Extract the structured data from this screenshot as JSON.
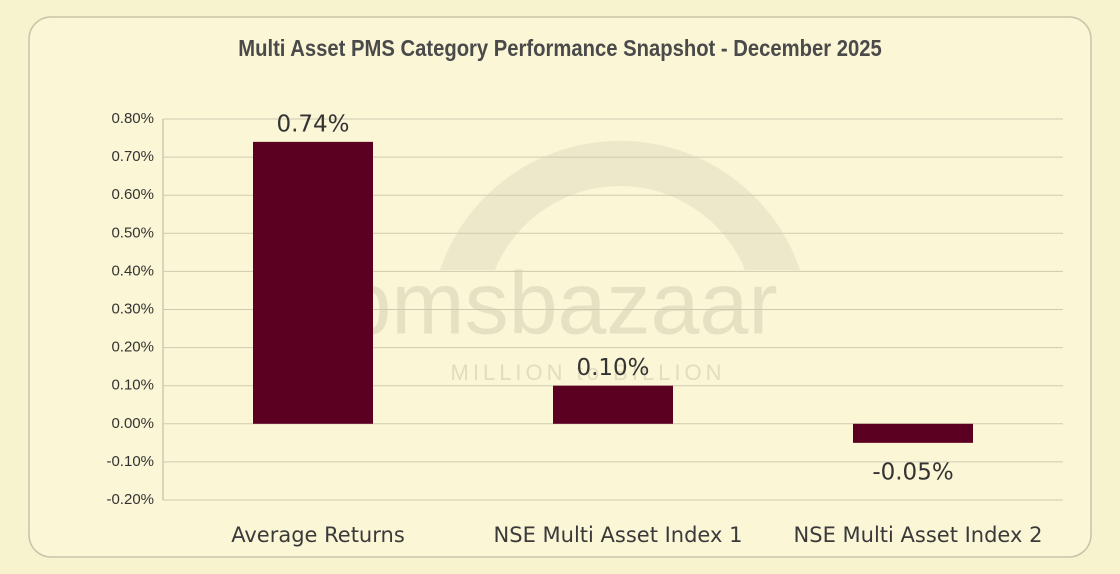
{
  "chart_data": {
    "type": "bar",
    "title": "Multi Asset PMS Category Performance Snapshot - December 2025",
    "categories": [
      "Average Returns",
      "NSE Multi Asset Index 1",
      "NSE Multi Asset Index 2"
    ],
    "values": [
      0.74,
      0.1,
      -0.05
    ],
    "value_labels": [
      "0.74%",
      "0.10%",
      "-0.05%"
    ],
    "color": "#5c0022",
    "ylim": [
      -0.2,
      0.8
    ],
    "yticks": [
      {
        "value": -0.2,
        "label": "-0.20%"
      },
      {
        "value": -0.1,
        "label": "-0.10%"
      },
      {
        "value": 0,
        "label": "0.00%"
      },
      {
        "value": 0.1,
        "label": "0.10%"
      },
      {
        "value": 0.2,
        "label": "0.20%"
      },
      {
        "value": 0.3,
        "label": "0.30%"
      },
      {
        "value": 0.4,
        "label": "0.40%"
      },
      {
        "value": 0.5,
        "label": "0.50%"
      },
      {
        "value": 0.6,
        "label": "0.60%"
      },
      {
        "value": 0.7,
        "label": "0.70%"
      },
      {
        "value": 0.8,
        "label": "0.80%"
      }
    ],
    "grid": true,
    "watermark": {
      "brand": "pmsbazaar",
      "tagline": "MILLION to BILLION"
    }
  }
}
